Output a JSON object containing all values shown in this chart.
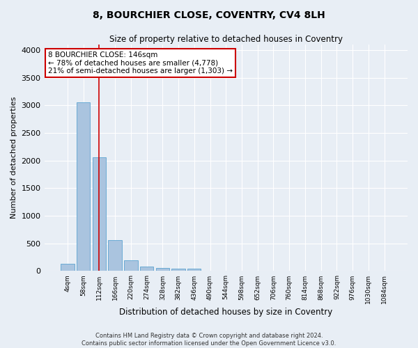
{
  "title": "8, BOURCHIER CLOSE, COVENTRY, CV4 8LH",
  "subtitle": "Size of property relative to detached houses in Coventry",
  "xlabel": "Distribution of detached houses by size in Coventry",
  "ylabel": "Number of detached properties",
  "footer_line1": "Contains HM Land Registry data © Crown copyright and database right 2024.",
  "footer_line2": "Contains public sector information licensed under the Open Government Licence v3.0.",
  "bar_labels": [
    "4sqm",
    "58sqm",
    "112sqm",
    "166sqm",
    "220sqm",
    "274sqm",
    "328sqm",
    "382sqm",
    "436sqm",
    "490sqm",
    "544sqm",
    "598sqm",
    "652sqm",
    "706sqm",
    "760sqm",
    "814sqm",
    "868sqm",
    "922sqm",
    "976sqm",
    "1030sqm",
    "1084sqm"
  ],
  "bar_values": [
    130,
    3060,
    2060,
    560,
    195,
    80,
    55,
    40,
    40,
    0,
    0,
    0,
    0,
    0,
    0,
    0,
    0,
    0,
    0,
    0,
    0
  ],
  "bar_color": "#aac4df",
  "bar_edge_color": "#6aaad4",
  "annotation_text": "8 BOURCHIER CLOSE: 146sqm\n← 78% of detached houses are smaller (4,778)\n21% of semi-detached houses are larger (1,303) →",
  "annotation_box_color": "#ffffff",
  "annotation_box_edge_color": "#cc0000",
  "vline_x": 2.0,
  "vline_color": "#cc0000",
  "ylim": [
    0,
    4100
  ],
  "background_color": "#e8eef5",
  "plot_bg_color": "#e8eef5",
  "grid_color": "#ffffff",
  "yticks": [
    0,
    500,
    1000,
    1500,
    2000,
    2500,
    3000,
    3500,
    4000
  ]
}
